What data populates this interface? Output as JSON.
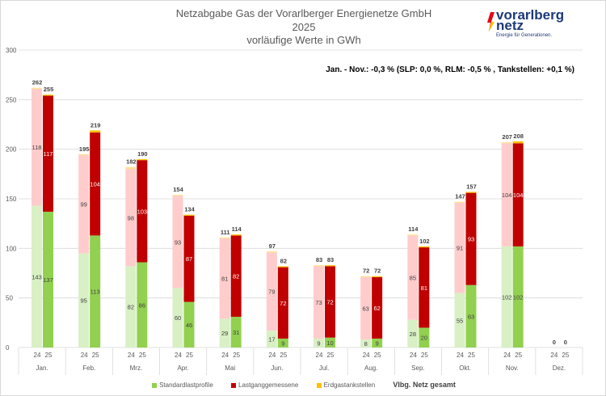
{
  "chart_data": {
    "type": "bar",
    "stacked": true,
    "title": "Netzabgabe Gas der Vorarlberger Energienetze GmbH",
    "subtitle": "2025",
    "subtitle2": "vorläufige Werte in GWh",
    "annotation": "Jan. - Nov.: -0,3 % (SLP: 0,0 %, RLM: -0,5 % , Tankstellen: +0,1 %)",
    "categories": [
      "Jan.",
      "Feb.",
      "Mrz.",
      "Apr.",
      "Mai",
      "Jun.",
      "Jul.",
      "Aug.",
      "Sep.",
      "Okt.",
      "Nov.",
      "Dez."
    ],
    "years": [
      "24",
      "25"
    ],
    "ylim": [
      0,
      300
    ],
    "yticks": [
      0,
      50,
      100,
      150,
      200,
      250,
      300
    ],
    "grid": true,
    "legend_position": "bottom",
    "series": [
      {
        "name": "Standardlastprofile",
        "color": "#92d050",
        "color_prev": "#d8f0c4",
        "values_24": [
          143,
          95,
          82,
          60,
          29,
          17,
          9,
          8,
          28,
          55,
          102,
          0
        ],
        "values_25": [
          137,
          113,
          86,
          46,
          31,
          9,
          10,
          9,
          20,
          63,
          102,
          0
        ]
      },
      {
        "name": "Lastganggemessene",
        "color": "#c00000",
        "color_prev": "#ffcccc",
        "values_24": [
          118,
          99,
          98,
          93,
          81,
          79,
          73,
          63,
          85,
          91,
          104,
          0
        ],
        "values_25": [
          117,
          104,
          103,
          87,
          82,
          72,
          72,
          62,
          81,
          93,
          104,
          0
        ]
      },
      {
        "name": "Erdgastankstellen",
        "color": "#ffc000",
        "color_prev": "#ffe08a",
        "values_24": [
          1,
          1,
          2,
          1,
          1,
          1,
          1,
          1,
          1,
          1,
          1,
          0
        ],
        "values_25": [
          1,
          2,
          1,
          1,
          1,
          1,
          1,
          1,
          1,
          1,
          2,
          0
        ]
      }
    ],
    "totals_name": "Vlbg. Netz gesamt",
    "totals_24": [
      262,
      195,
      182,
      154,
      111,
      97,
      83,
      72,
      114,
      147,
      207,
      0
    ],
    "totals_25": [
      255,
      219,
      190,
      134,
      114,
      82,
      83,
      72,
      102,
      157,
      208,
      0
    ]
  },
  "logo": {
    "line1": "vorarlberg",
    "line2": "netz",
    "tagline": "Energie für Generationen."
  }
}
